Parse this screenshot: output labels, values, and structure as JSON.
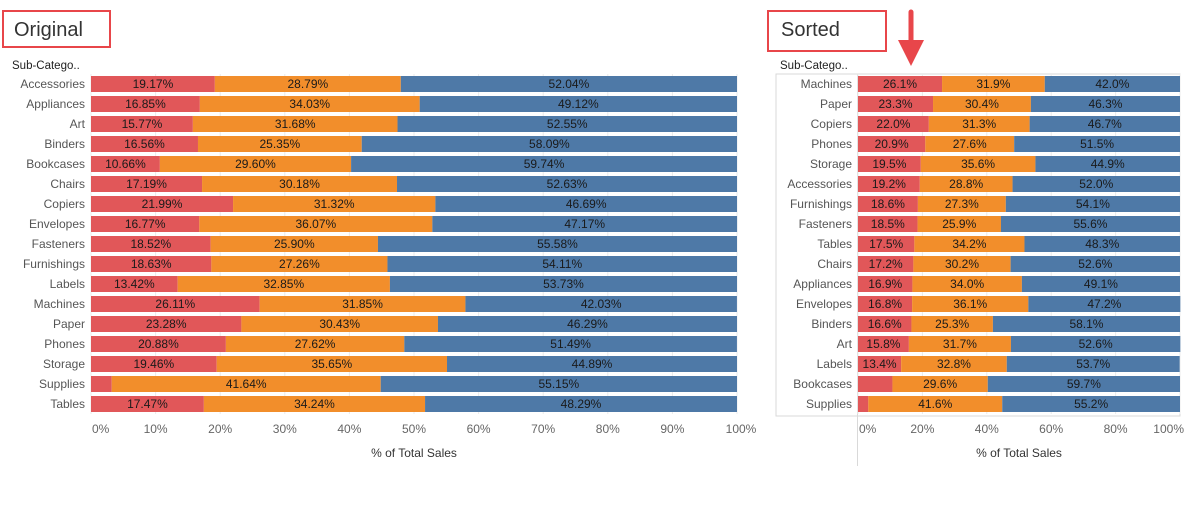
{
  "chart_data": [
    {
      "type": "bar",
      "stacked": true,
      "orientation": "horizontal",
      "title": "Original",
      "row_header": "Sub-Catego..",
      "xlabel": "% of Total Sales",
      "xlim": [
        0,
        100
      ],
      "ticks": [
        "0%",
        "10%",
        "20%",
        "30%",
        "40%",
        "50%",
        "60%",
        "70%",
        "80%",
        "90%",
        "100%"
      ],
      "categories": [
        "Accessories",
        "Appliances",
        "Art",
        "Binders",
        "Bookcases",
        "Chairs",
        "Copiers",
        "Envelopes",
        "Fasteners",
        "Furnishings",
        "Labels",
        "Machines",
        "Paper",
        "Phones",
        "Storage",
        "Supplies",
        "Tables"
      ],
      "series": [
        {
          "color": "#e15759",
          "values": [
            19.17,
            16.85,
            15.77,
            16.56,
            10.66,
            17.19,
            21.99,
            16.77,
            18.52,
            18.63,
            13.42,
            26.11,
            23.28,
            20.88,
            19.46,
            3.21,
            17.47
          ],
          "labels": [
            "19.17%",
            "16.85%",
            "15.77%",
            "16.56%",
            "10.66%",
            "17.19%",
            "21.99%",
            "16.77%",
            "18.52%",
            "18.63%",
            "13.42%",
            "26.11%",
            "23.28%",
            "20.88%",
            "19.46%",
            "",
            "17.47%"
          ]
        },
        {
          "color": "#f28e2b",
          "values": [
            28.79,
            34.03,
            31.68,
            25.35,
            29.6,
            30.18,
            31.32,
            36.07,
            25.9,
            27.26,
            32.85,
            31.85,
            30.43,
            27.62,
            35.65,
            41.64,
            34.24
          ],
          "labels": [
            "28.79%",
            "34.03%",
            "31.68%",
            "25.35%",
            "29.60%",
            "30.18%",
            "31.32%",
            "36.07%",
            "25.90%",
            "27.26%",
            "32.85%",
            "31.85%",
            "30.43%",
            "27.62%",
            "35.65%",
            "41.64%",
            "34.24%"
          ]
        },
        {
          "color": "#4e79a7",
          "values": [
            52.04,
            49.12,
            52.55,
            58.09,
            59.74,
            52.63,
            46.69,
            47.17,
            55.58,
            54.11,
            53.73,
            42.03,
            46.29,
            51.49,
            44.89,
            55.15,
            48.29
          ],
          "labels": [
            "52.04%",
            "49.12%",
            "52.55%",
            "58.09%",
            "59.74%",
            "52.63%",
            "46.69%",
            "47.17%",
            "55.58%",
            "54.11%",
            "53.73%",
            "42.03%",
            "46.29%",
            "51.49%",
            "44.89%",
            "55.15%",
            "48.29%"
          ]
        }
      ]
    },
    {
      "type": "bar",
      "stacked": true,
      "orientation": "horizontal",
      "title": "Sorted",
      "row_header": "Sub-Catego..",
      "xlabel": "% of Total Sales",
      "xlim": [
        0,
        100
      ],
      "ticks": [
        "0%",
        "20%",
        "40%",
        "60%",
        "80%",
        "100%"
      ],
      "categories": [
        "Machines",
        "Paper",
        "Copiers",
        "Phones",
        "Storage",
        "Accessories",
        "Furnishings",
        "Fasteners",
        "Tables",
        "Chairs",
        "Appliances",
        "Envelopes",
        "Binders",
        "Art",
        "Labels",
        "Bookcases",
        "Supplies"
      ],
      "series": [
        {
          "color": "#e15759",
          "values": [
            26.1,
            23.3,
            22.0,
            20.9,
            19.5,
            19.2,
            18.6,
            18.5,
            17.5,
            17.2,
            16.9,
            16.8,
            16.6,
            15.8,
            13.4,
            10.7,
            3.2
          ],
          "labels": [
            "26.1%",
            "23.3%",
            "22.0%",
            "20.9%",
            "19.5%",
            "19.2%",
            "18.6%",
            "18.5%",
            "17.5%",
            "17.2%",
            "16.9%",
            "16.8%",
            "16.6%",
            "15.8%",
            "13.4%",
            "",
            ""
          ]
        },
        {
          "color": "#f28e2b",
          "values": [
            31.9,
            30.4,
            31.3,
            27.6,
            35.6,
            28.8,
            27.3,
            25.9,
            34.2,
            30.2,
            34.0,
            36.1,
            25.3,
            31.7,
            32.8,
            29.6,
            41.6
          ],
          "labels": [
            "31.9%",
            "30.4%",
            "31.3%",
            "27.6%",
            "35.6%",
            "28.8%",
            "27.3%",
            "25.9%",
            "34.2%",
            "30.2%",
            "34.0%",
            "36.1%",
            "25.3%",
            "31.7%",
            "32.8%",
            "29.6%",
            "41.6%"
          ]
        },
        {
          "color": "#4e79a7",
          "values": [
            42.0,
            46.3,
            46.7,
            51.5,
            44.9,
            52.0,
            54.1,
            55.6,
            48.3,
            52.6,
            49.1,
            47.2,
            58.1,
            52.6,
            53.7,
            59.7,
            55.2
          ],
          "labels": [
            "42.0%",
            "46.3%",
            "46.7%",
            "51.5%",
            "44.9%",
            "52.0%",
            "54.1%",
            "55.6%",
            "48.3%",
            "52.6%",
            "49.1%",
            "47.2%",
            "58.1%",
            "52.6%",
            "53.7%",
            "59.7%",
            "55.2%"
          ]
        }
      ]
    }
  ],
  "annotations": {
    "box_color": "#e8464a",
    "arrow_color": "#e8464a"
  }
}
